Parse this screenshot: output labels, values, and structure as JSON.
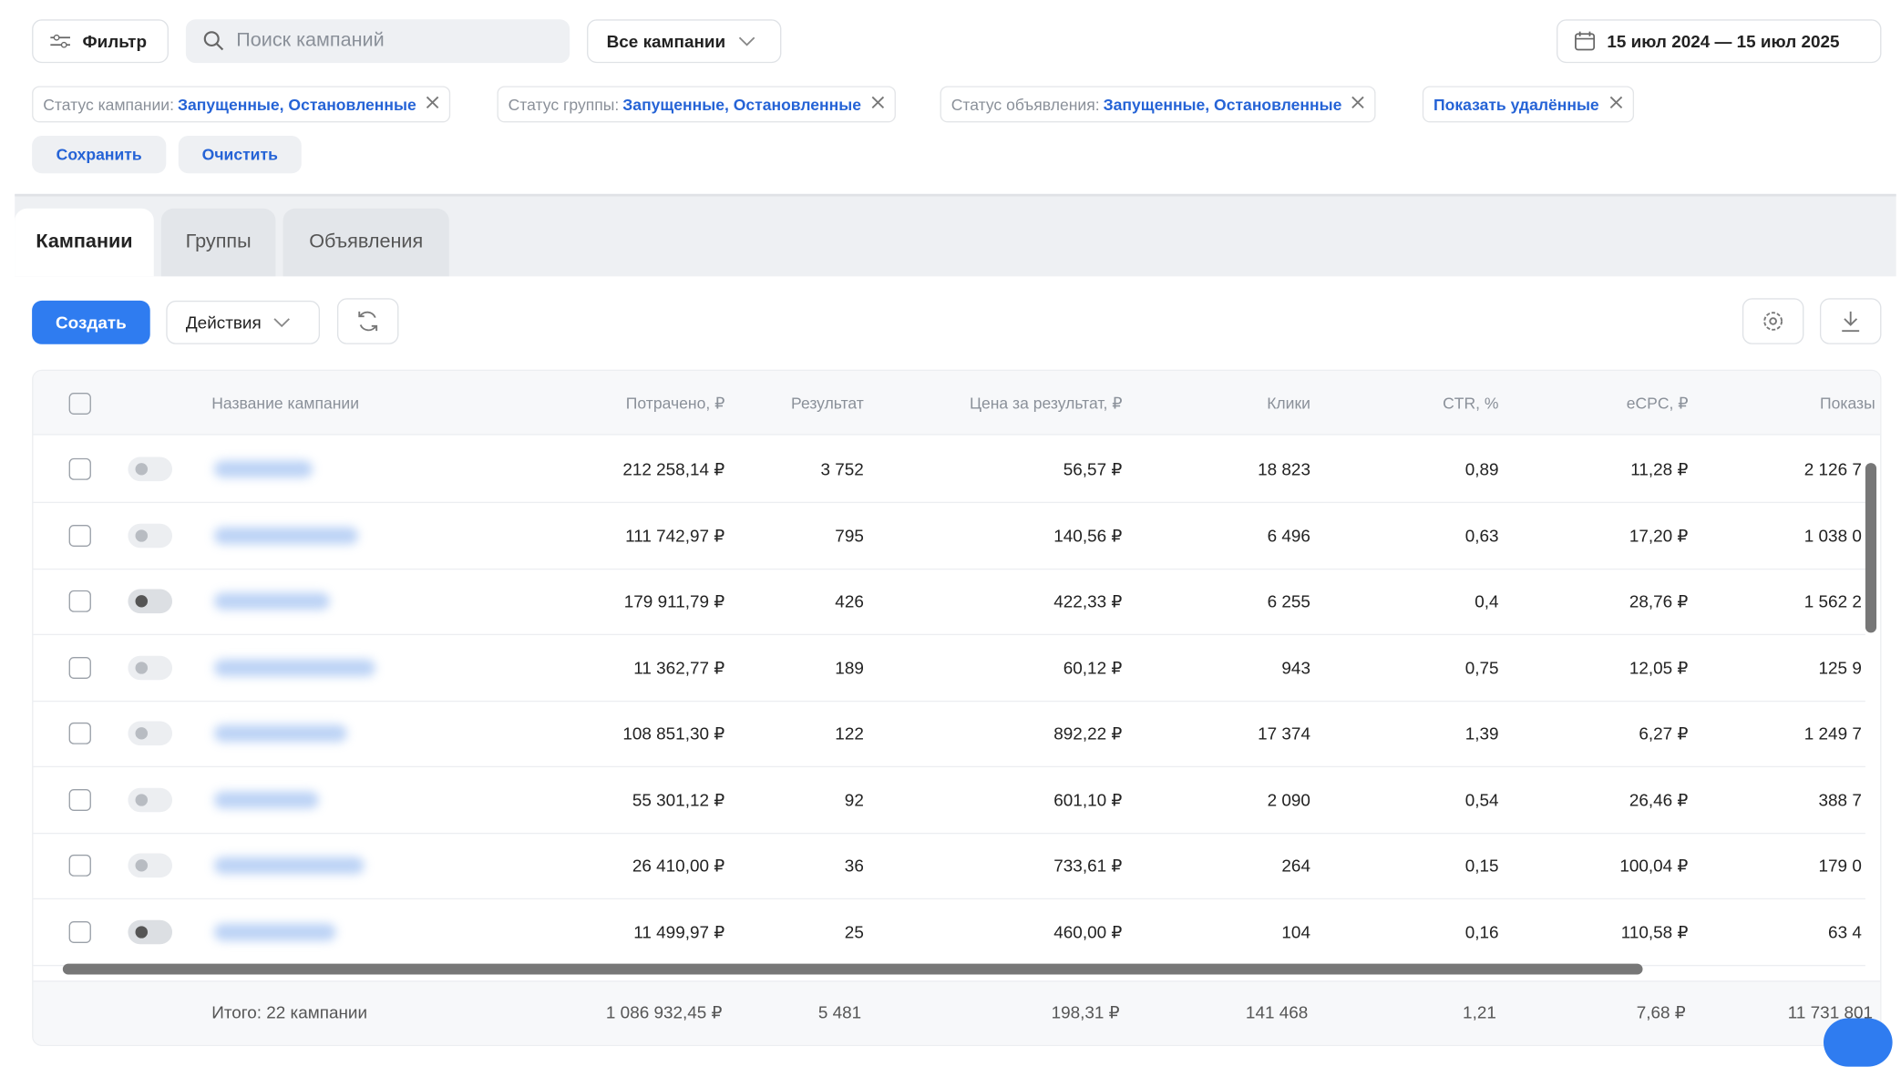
{
  "toolbar": {
    "filter": "Фильтр",
    "search_placeholder": "Поиск кампаний",
    "campaign_select": "Все кампании",
    "date_range": "15 июл 2024 — 15 июл 2025"
  },
  "chips": [
    {
      "label": "Статус кампании:",
      "value": "Запущенные, Остановленные"
    },
    {
      "label": "Статус группы:",
      "value": "Запущенные, Остановленные"
    },
    {
      "label": "Статус объявления:",
      "value": "Запущенные, Остановленные"
    },
    {
      "value": "Показать удалённые"
    }
  ],
  "chip_actions": [
    "Сохранить",
    "Очистить"
  ],
  "tabs": [
    "Кампании",
    "Группы",
    "Объявления"
  ],
  "actions": {
    "create": "Создать",
    "menu": "Действия"
  },
  "table": {
    "name_column": "Название кампании",
    "columns": [
      "Потрачено, ₽",
      "Результат",
      "Цена за результат, ₽",
      "Клики",
      "CTR, %",
      "eCPC, ₽",
      "Показы"
    ],
    "rows": [
      [
        "212 258,14 ₽",
        "3 752",
        "56,57 ₽",
        "18 823",
        "0,89",
        "11,28 ₽",
        "2 126 7"
      ],
      [
        "111 742,97 ₽",
        "795",
        "140,56 ₽",
        "6 496",
        "0,63",
        "17,20 ₽",
        "1 038 0"
      ],
      [
        "179 911,79 ₽",
        "426",
        "422,33 ₽",
        "6 255",
        "0,4",
        "28,76 ₽",
        "1 562 2"
      ],
      [
        "11 362,77 ₽",
        "189",
        "60,12 ₽",
        "943",
        "0,75",
        "12,05 ₽",
        "125 9"
      ],
      [
        "108 851,30 ₽",
        "122",
        "892,22 ₽",
        "17 374",
        "1,39",
        "6,27 ₽",
        "1 249 7"
      ],
      [
        "55 301,12 ₽",
        "92",
        "601,10 ₽",
        "2 090",
        "0,54",
        "26,46 ₽",
        "388 7"
      ],
      [
        "26 410,00 ₽",
        "36",
        "733,61 ₽",
        "264",
        "0,15",
        "100,04 ₽",
        "179 0"
      ],
      [
        "11 499,97 ₽",
        "25",
        "460,00 ₽",
        "104",
        "0,16",
        "110,58 ₽",
        "63 4"
      ]
    ],
    "total": {
      "label": "Итого: 22 кампании",
      "values": [
        "1 086 932,45 ₽",
        "5 481",
        "198,31 ₽",
        "141 468",
        "1,21",
        "7,68 ₽",
        "11 731 801"
      ]
    }
  }
}
